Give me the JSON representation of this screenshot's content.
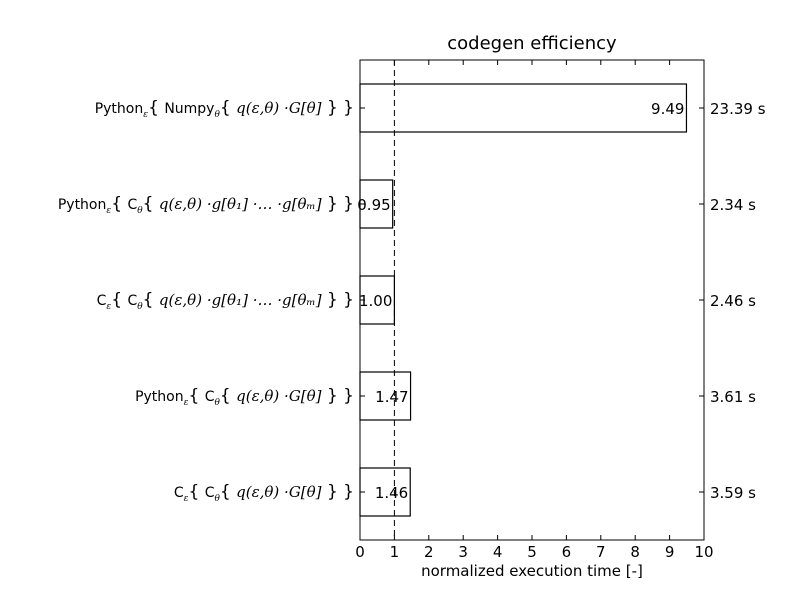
{
  "chart_data": {
    "type": "bar",
    "orientation": "horizontal",
    "title": "codegen efficiency",
    "xlabel": "normalized execution time [-]",
    "ylabel": "",
    "xlim": [
      0,
      10
    ],
    "x_ticks": [
      "0",
      "1",
      "2",
      "3",
      "4",
      "5",
      "6",
      "7",
      "8",
      "9",
      "10"
    ],
    "reference_line": {
      "x": 1,
      "style": "dashed"
    },
    "grid": false,
    "categories": [
      {
        "label_parts": [
          {
            "t": "Python",
            "k": "txt"
          },
          {
            "t": "ε",
            "k": "sub"
          },
          {
            "t": "{ ",
            "k": "brace"
          },
          {
            "t": "Numpy",
            "k": "txt"
          },
          {
            "t": "θ",
            "k": "sub"
          },
          {
            "t": "{ ",
            "k": "brace"
          },
          {
            "t": "q(ε,θ) ·G[θ]",
            "k": "math"
          },
          {
            "t": " } }",
            "k": "brace"
          }
        ]
      },
      {
        "label_parts": [
          {
            "t": "Python",
            "k": "txt"
          },
          {
            "t": "ε",
            "k": "sub"
          },
          {
            "t": "{ ",
            "k": "brace"
          },
          {
            "t": "C",
            "k": "txt"
          },
          {
            "t": "θ",
            "k": "sub"
          },
          {
            "t": "{ ",
            "k": "brace"
          },
          {
            "t": "q(ε,θ) ·g[θ₁] ·… ·g[θₘ]",
            "k": "math"
          },
          {
            "t": " } }",
            "k": "brace"
          }
        ]
      },
      {
        "label_parts": [
          {
            "t": "C",
            "k": "txt"
          },
          {
            "t": "ε",
            "k": "sub"
          },
          {
            "t": "{ ",
            "k": "brace"
          },
          {
            "t": "C",
            "k": "txt"
          },
          {
            "t": "θ",
            "k": "sub"
          },
          {
            "t": "{ ",
            "k": "brace"
          },
          {
            "t": "q(ε,θ) ·g[θ₁] ·… ·g[θₘ]",
            "k": "math"
          },
          {
            "t": " } }",
            "k": "brace"
          }
        ]
      },
      {
        "label_parts": [
          {
            "t": "Python",
            "k": "txt"
          },
          {
            "t": "ε",
            "k": "sub"
          },
          {
            "t": "{ ",
            "k": "brace"
          },
          {
            "t": "C",
            "k": "txt"
          },
          {
            "t": "θ",
            "k": "sub"
          },
          {
            "t": "{ ",
            "k": "brace"
          },
          {
            "t": "q(ε,θ) ·G[θ]",
            "k": "math"
          },
          {
            "t": " } }",
            "k": "brace"
          }
        ]
      },
      {
        "label_parts": [
          {
            "t": "C",
            "k": "txt"
          },
          {
            "t": "ε",
            "k": "sub"
          },
          {
            "t": "{ ",
            "k": "brace"
          },
          {
            "t": "C",
            "k": "txt"
          },
          {
            "t": "θ",
            "k": "sub"
          },
          {
            "t": "{ ",
            "k": "brace"
          },
          {
            "t": "q(ε,θ) ·G[θ]",
            "k": "math"
          },
          {
            "t": " } }",
            "k": "brace"
          }
        ]
      }
    ],
    "values": [
      9.49,
      0.95,
      1.0,
      1.47,
      1.46
    ],
    "value_labels": [
      "9.49",
      "0.95",
      "1.00",
      "1.47",
      "1.46"
    ],
    "right_labels": [
      "23.39 s",
      "2.34 s",
      "2.46 s",
      "3.61 s",
      "3.59 s"
    ],
    "bar_color": "#ffffff",
    "bar_edge_color": "#000000"
  }
}
